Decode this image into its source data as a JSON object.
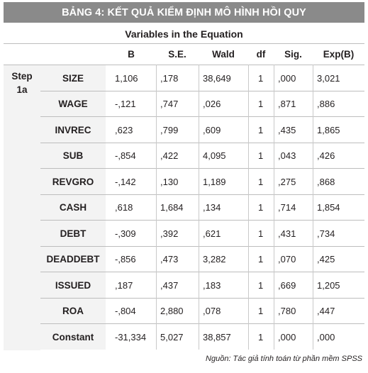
{
  "title": "BẢNG 4: KẾT QUẢ KIỂM ĐỊNH MÔ HÌNH HỒI QUY",
  "subtitle": "Variables in the Equation",
  "columns": [
    "B",
    "S.E.",
    "Wald",
    "df",
    "Sig.",
    "Exp(B)"
  ],
  "step_label_1": "Step",
  "step_label_2": "1a",
  "rows": [
    {
      "name": "SIZE",
      "values": [
        "1,106",
        ",178",
        "38,649",
        "1",
        ",000",
        "3,021"
      ]
    },
    {
      "name": "WAGE",
      "values": [
        "-,121",
        ",747",
        ",026",
        "1",
        ",871",
        ",886"
      ]
    },
    {
      "name": "INVREC",
      "values": [
        ",623",
        ",799",
        ",609",
        "1",
        ",435",
        "1,865"
      ]
    },
    {
      "name": "SUB",
      "values": [
        "-,854",
        ",422",
        "4,095",
        "1",
        ",043",
        ",426"
      ]
    },
    {
      "name": "REVGRO",
      "values": [
        "-,142",
        ",130",
        "1,189",
        "1",
        ",275",
        ",868"
      ]
    },
    {
      "name": "CASH",
      "values": [
        ",618",
        "1,684",
        ",134",
        "1",
        ",714",
        "1,854"
      ]
    },
    {
      "name": "DEBT",
      "values": [
        "-,309",
        ",392",
        ",621",
        "1",
        ",431",
        ",734"
      ]
    },
    {
      "name": "DEADDEBT",
      "values": [
        "-,856",
        ",473",
        "3,282",
        "1",
        ",070",
        ",425"
      ]
    },
    {
      "name": "ISSUED",
      "values": [
        ",187",
        ",437",
        ",183",
        "1",
        ",669",
        "1,205"
      ]
    },
    {
      "name": "ROA",
      "values": [
        "-,804",
        "2,880",
        ",078",
        "1",
        ",780",
        ",447"
      ]
    },
    {
      "name": "Constant",
      "values": [
        "-31,334",
        "5,027",
        "38,857",
        "1",
        ",000",
        ",000"
      ]
    }
  ],
  "source": "Nguồn: Tác giả tính toán từ phần mềm SPSS"
}
